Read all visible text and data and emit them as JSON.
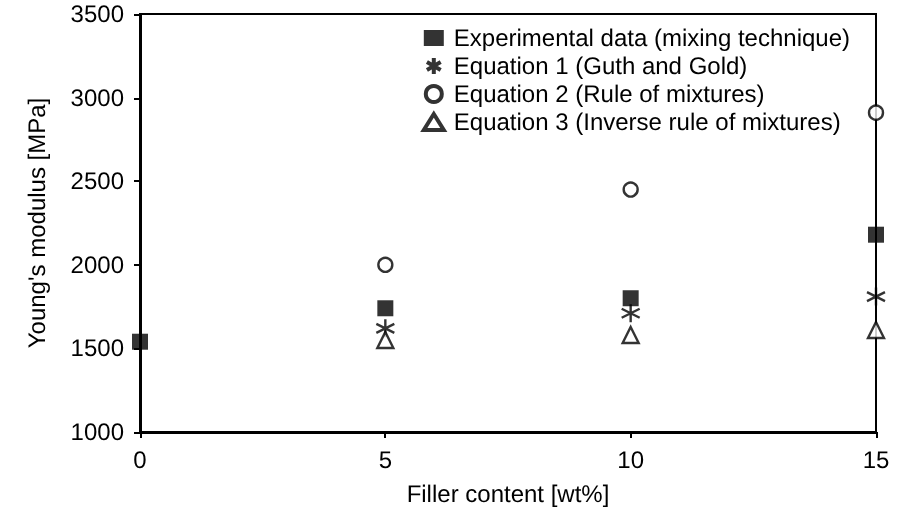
{
  "chart_data": {
    "type": "scatter",
    "xlabel": "Filler content [wt%]",
    "ylabel": "Young's modulus [MPa]",
    "xlim": [
      0,
      15
    ],
    "xticks": [
      0,
      5,
      10,
      15
    ],
    "ylim": [
      1000,
      3500
    ],
    "yticks": [
      1000,
      1500,
      2000,
      2500,
      3000,
      3500
    ],
    "grid": false,
    "legend": "top right",
    "series": [
      {
        "name": "Experimental data (mixing technique)",
        "color": "#000000",
        "marker": "square",
        "x": [
          0,
          5,
          10,
          15
        ],
        "values": [
          1540,
          1740,
          1800,
          2180
        ]
      },
      {
        "name": "Equation 1 (Guth and Gold)",
        "color": "#000000",
        "marker": "cross",
        "x": [
          5,
          10,
          15
        ],
        "values": [
          1620,
          1710,
          1810
        ]
      },
      {
        "name": "Equation 2 (Rule of mixtures)",
        "color": "#000000",
        "marker": "circle",
        "x": [
          5,
          10,
          15
        ],
        "values": [
          2000,
          2450,
          2910
        ]
      },
      {
        "name": "Equation 3 (Inverse rule of mixtures)",
        "color": "#000000",
        "marker": "triangle",
        "x": [
          5,
          10,
          15
        ],
        "values": [
          1550,
          1580,
          1610
        ]
      }
    ]
  }
}
